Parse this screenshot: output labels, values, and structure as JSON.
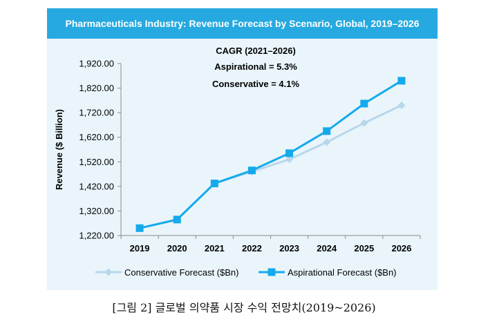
{
  "chart_data": {
    "type": "line",
    "title": "Pharmaceuticals Industry: Revenue Forecast by Scenario, Global, 2019–2026",
    "xlabel": "",
    "ylabel": "Revenue ($ Billion)",
    "categories": [
      "2019",
      "2020",
      "2021",
      "2022",
      "2023",
      "2024",
      "2025",
      "2026"
    ],
    "ylim": [
      1220,
      1920
    ],
    "yticks": [
      1220,
      1320,
      1420,
      1520,
      1620,
      1720,
      1820,
      1920
    ],
    "ytick_labels": [
      "1,220.00",
      "1,320.00",
      "1,420.00",
      "1,520.00",
      "1,620.00",
      "1,720.00",
      "1,820.00",
      "1,920.00"
    ],
    "series": [
      {
        "name": "Conservative Forecast ($Bn)",
        "color": "#b8d7ea",
        "marker": "diamond",
        "values": [
          1250,
          1285,
          1432,
          1480,
          1530,
          1600,
          1678,
          1750
        ]
      },
      {
        "name": "Aspirational Forecast ($Bn)",
        "color": "#14aaeb",
        "marker": "square",
        "values": [
          1250,
          1285,
          1432,
          1485,
          1555,
          1645,
          1757,
          1850
        ]
      }
    ],
    "annotations": [
      "CAGR (2021–2026)",
      "Aspirational = 5.3%",
      "Conservative = 4.1%"
    ],
    "legend_position": "bottom",
    "grid": false
  },
  "caption": "[그림 2] 글로벌 의약품 시장 수익 전망치(2019~2026)"
}
